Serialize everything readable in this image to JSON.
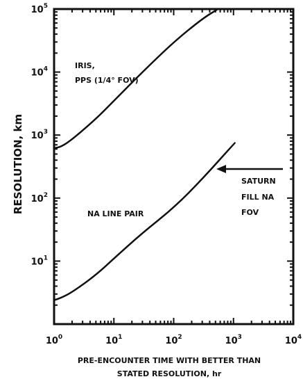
{
  "chart_data": {
    "type": "line",
    "xscale": "log",
    "yscale": "log",
    "xlim": [
      1,
      10000
    ],
    "ylim": [
      1,
      100000
    ],
    "xlabel_line1": "PRE-ENCOUNTER TIME WITH BETTER THAN",
    "xlabel_line2": "STATED RESOLUTION, hr",
    "ylabel": "RESOLUTION, km",
    "x_ticks": [
      {
        "base": "10",
        "exp": "0",
        "value": 1
      },
      {
        "base": "10",
        "exp": "1",
        "value": 10
      },
      {
        "base": "10",
        "exp": "2",
        "value": 100
      },
      {
        "base": "10",
        "exp": "3",
        "value": 1000
      },
      {
        "base": "10",
        "exp": "4",
        "value": 10000
      }
    ],
    "y_ticks": [
      {
        "base": "10",
        "exp": "1",
        "value": 10
      },
      {
        "base": "10",
        "exp": "2",
        "value": 100
      },
      {
        "base": "10",
        "exp": "3",
        "value": 1000
      },
      {
        "base": "10",
        "exp": "4",
        "value": 10000
      },
      {
        "base": "10",
        "exp": "5",
        "value": 100000
      }
    ],
    "series": [
      {
        "label_line1": "IRIS,",
        "label_line2": "PPS (1/4° FOV)",
        "x": [
          1.0,
          1.3,
          2,
          5,
          10,
          30,
          100,
          300,
          550
        ],
        "y": [
          620,
          650,
          850,
          1800,
          3500,
          10000,
          30000,
          70000,
          100000
        ]
      },
      {
        "label": "NA LINE PAIR",
        "x": [
          1.0,
          1.3,
          2,
          5,
          10,
          30,
          100,
          300,
          1050
        ],
        "y": [
          2.4,
          2.6,
          3.2,
          6.0,
          11,
          28,
          70,
          200,
          750
        ]
      }
    ],
    "annotations": [
      {
        "line1": "SATURN",
        "line2": "FILL NA",
        "line3": "FOV",
        "arrow": "left"
      }
    ]
  }
}
